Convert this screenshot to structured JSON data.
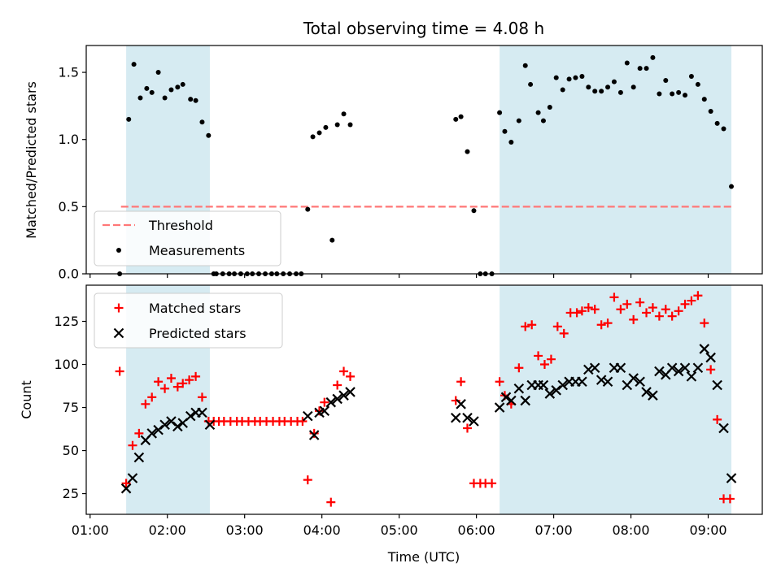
{
  "chart_data": [
    {
      "type": "scatter",
      "title": "Total observing time = 4.08 h",
      "xlabel": "",
      "ylabel": "Matched/Predicted stars",
      "ylim": [
        0,
        1.7
      ],
      "yticks": [
        0.0,
        0.5,
        1.0,
        1.5
      ],
      "ytick_labels": [
        "0.0",
        "0.5",
        "1.0",
        "1.5"
      ],
      "xlim": [
        0.95,
        9.7
      ],
      "grid": false,
      "legend_position": "lower-left",
      "observing_spans": [
        [
          1.467,
          2.55
        ],
        [
          6.3,
          9.3
        ]
      ],
      "threshold": {
        "name": "Threshold",
        "value": 0.5,
        "x_range": [
          1.4,
          9.3
        ],
        "color": "#ff7777"
      },
      "series": [
        {
          "name": "Measurements",
          "color": "#000000",
          "x": [
            1.383,
            1.5,
            1.567,
            1.65,
            1.733,
            1.8,
            1.883,
            1.967,
            2.05,
            2.133,
            2.2,
            2.3,
            2.367,
            2.45,
            2.533,
            2.6,
            2.633,
            2.717,
            2.8,
            2.867,
            2.95,
            3.033,
            3.1,
            3.183,
            3.267,
            3.35,
            3.417,
            3.5,
            3.583,
            3.667,
            3.733,
            3.817,
            3.883,
            3.967,
            4.05,
            4.133,
            4.2,
            4.283,
            4.367,
            5.733,
            5.8,
            5.883,
            5.967,
            6.05,
            6.117,
            6.2,
            6.3,
            6.367,
            6.45,
            6.55,
            6.633,
            6.7,
            6.8,
            6.867,
            6.95,
            7.033,
            7.117,
            7.2,
            7.283,
            7.367,
            7.45,
            7.533,
            7.617,
            7.7,
            7.783,
            7.867,
            7.95,
            8.033,
            8.117,
            8.2,
            8.283,
            8.367,
            8.45,
            8.533,
            8.617,
            8.7,
            8.783,
            8.867,
            8.95,
            9.033,
            9.117,
            9.2,
            9.3
          ],
          "y": [
            0.0,
            1.15,
            1.56,
            1.31,
            1.38,
            1.35,
            1.5,
            1.31,
            1.37,
            1.39,
            1.41,
            1.3,
            1.29,
            1.13,
            1.03,
            0.0,
            0.0,
            0.0,
            0.0,
            0.0,
            0.0,
            0.0,
            0.0,
            0.0,
            0.0,
            0.0,
            0.0,
            0.0,
            0.0,
            0.0,
            0.0,
            0.48,
            1.02,
            1.05,
            1.09,
            0.25,
            1.11,
            1.19,
            1.11,
            1.15,
            1.17,
            0.91,
            0.47,
            0.0,
            0.0,
            0.0,
            1.2,
            1.06,
            0.98,
            1.14,
            1.55,
            1.41,
            1.2,
            1.14,
            1.24,
            1.46,
            1.37,
            1.45,
            1.46,
            1.47,
            1.39,
            1.36,
            1.36,
            1.39,
            1.43,
            1.35,
            1.57,
            1.39,
            1.53,
            1.53,
            1.61,
            1.34,
            1.44,
            1.34,
            1.35,
            1.33,
            1.47,
            1.41,
            1.3,
            1.21,
            1.12,
            1.08,
            0.65
          ]
        }
      ]
    },
    {
      "type": "scatter",
      "title": "",
      "xlabel": "Time (UTC)",
      "ylabel": "Count",
      "ylim": [
        13,
        146
      ],
      "yticks": [
        25,
        50,
        75,
        100,
        125
      ],
      "ytick_labels": [
        "25",
        "50",
        "75",
        "100",
        "125"
      ],
      "xlim": [
        0.95,
        9.7
      ],
      "xticks": [
        1,
        2,
        3,
        4,
        5,
        6,
        7,
        8,
        9
      ],
      "xtick_labels": [
        "01:00",
        "02:00",
        "03:00",
        "04:00",
        "05:00",
        "06:00",
        "07:00",
        "08:00",
        "09:00"
      ],
      "grid": false,
      "legend_position": "upper-left",
      "observing_spans": [
        [
          1.467,
          2.55
        ],
        [
          6.3,
          9.3
        ]
      ],
      "series": [
        {
          "name": "Matched stars",
          "marker": "plus",
          "color": "#ff0000",
          "x": [
            1.383,
            1.467,
            1.55,
            1.633,
            1.717,
            1.8,
            1.883,
            1.967,
            2.05,
            2.133,
            2.2,
            2.283,
            2.367,
            2.45,
            2.533,
            2.6,
            2.667,
            2.733,
            2.817,
            2.9,
            2.967,
            3.05,
            3.133,
            3.2,
            3.283,
            3.367,
            3.45,
            3.517,
            3.6,
            3.683,
            3.75,
            3.817,
            3.9,
            3.967,
            4.033,
            4.117,
            4.2,
            4.283,
            4.367,
            5.733,
            5.8,
            5.883,
            5.967,
            6.05,
            6.117,
            6.2,
            6.3,
            6.367,
            6.45,
            6.55,
            6.633,
            6.717,
            6.8,
            6.883,
            6.967,
            7.05,
            7.133,
            7.217,
            7.3,
            7.367,
            7.45,
            7.533,
            7.617,
            7.7,
            7.783,
            7.867,
            7.95,
            8.033,
            8.117,
            8.2,
            8.283,
            8.367,
            8.45,
            8.533,
            8.617,
            8.7,
            8.783,
            8.867,
            8.95,
            9.033,
            9.117,
            9.2,
            9.283
          ],
          "y": [
            96,
            31,
            53,
            60,
            77,
            81,
            90,
            86,
            92,
            87,
            89,
            91,
            93,
            81,
            67,
            67,
            67,
            67,
            67,
            67,
            67,
            67,
            67,
            67,
            67,
            67,
            67,
            67,
            67,
            67,
            67,
            33,
            60,
            73,
            78,
            20,
            88,
            96,
            93,
            79,
            90,
            63,
            31,
            31,
            31,
            31,
            90,
            82,
            77,
            98,
            122,
            123,
            105,
            100,
            103,
            122,
            118,
            130,
            130,
            131,
            133,
            132,
            123,
            124,
            139,
            132,
            135,
            126,
            136,
            130,
            133,
            128,
            132,
            128,
            131,
            135,
            137,
            140,
            124,
            97,
            68,
            22,
            22
          ]
        },
        {
          "name": "Predicted stars",
          "marker": "x",
          "color": "#000000",
          "x": [
            1.467,
            1.55,
            1.633,
            1.717,
            1.8,
            1.883,
            1.967,
            2.05,
            2.133,
            2.2,
            2.3,
            2.367,
            2.45,
            2.55,
            3.817,
            3.9,
            3.967,
            4.033,
            4.117,
            4.2,
            4.283,
            4.367,
            5.733,
            5.8,
            5.883,
            5.967,
            6.3,
            6.383,
            6.45,
            6.55,
            6.633,
            6.717,
            6.8,
            6.867,
            6.95,
            7.033,
            7.117,
            7.2,
            7.283,
            7.367,
            7.45,
            7.533,
            7.617,
            7.7,
            7.783,
            7.867,
            7.95,
            8.033,
            8.117,
            8.2,
            8.283,
            8.367,
            8.45,
            8.533,
            8.617,
            8.7,
            8.783,
            8.867,
            8.95,
            9.033,
            9.117,
            9.2,
            9.3
          ],
          "y": [
            28,
            34,
            46,
            56,
            60,
            62,
            65,
            67,
            64,
            66,
            70,
            72,
            72,
            65,
            70,
            59,
            72,
            73,
            78,
            80,
            82,
            84,
            69,
            77,
            69,
            67,
            75,
            81,
            79,
            86,
            79,
            88,
            88,
            88,
            83,
            85,
            88,
            90,
            90,
            90,
            97,
            98,
            91,
            90,
            98,
            98,
            88,
            92,
            90,
            84,
            82,
            96,
            94,
            98,
            96,
            98,
            93,
            98,
            109,
            104,
            88,
            63,
            34
          ]
        }
      ]
    }
  ]
}
